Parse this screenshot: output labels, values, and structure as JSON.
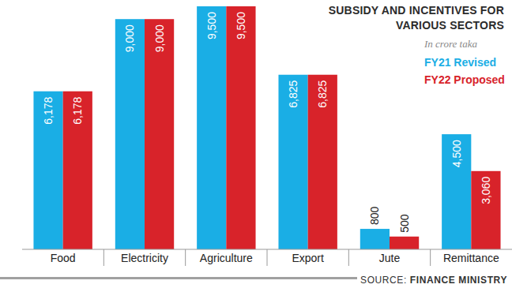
{
  "chart_data": {
    "type": "bar",
    "title": "SUBSIDY AND INCENTIVES FOR VARIOUS SECTORS",
    "subtitle": "In crore taka",
    "source": "SOURCE: FINANCE MINISTRY",
    "categories": [
      "Food",
      "Electricity",
      "Agriculture",
      "Export",
      "Jute",
      "Remittance"
    ],
    "series": [
      {
        "name": "FY21 Revised",
        "color": "#1aaee5",
        "values": [
          6178,
          9000,
          9500,
          6825,
          800,
          4500
        ],
        "value_labels": [
          "6,178",
          "9,000",
          "9,500",
          "6,825",
          "800",
          "4,500"
        ]
      },
      {
        "name": "FY22 Proposed",
        "color": "#d8232a",
        "values": [
          6178,
          9000,
          9500,
          6825,
          500,
          3060
        ],
        "value_labels": [
          "6,178",
          "9,000",
          "9,500",
          "6,825",
          "500",
          "3,060"
        ]
      }
    ],
    "ylim": [
      0,
      9500
    ],
    "tick_labels": "x",
    "data_labels": true,
    "legend": "top-right",
    "grid": false
  }
}
